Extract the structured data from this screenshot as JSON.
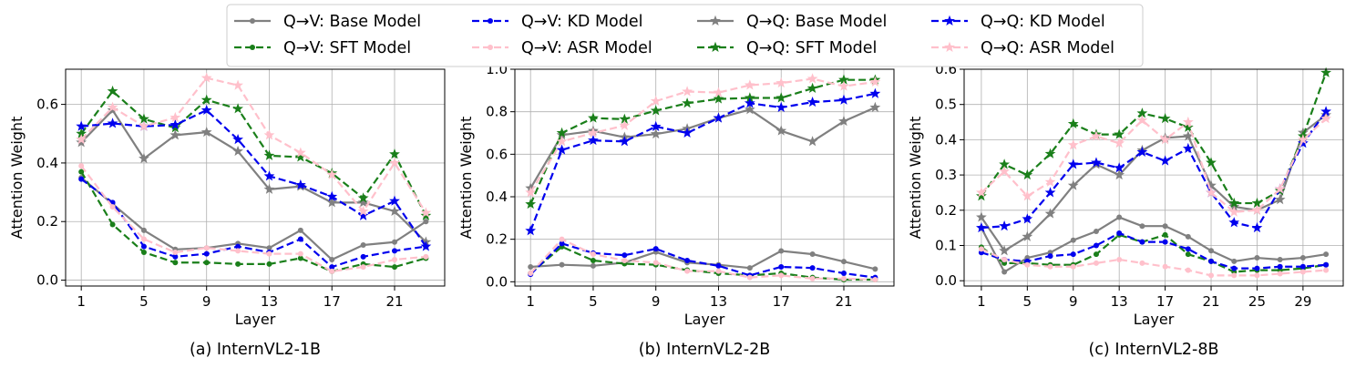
{
  "legend": {
    "entries": [
      {
        "label": "Q→V: Base Model",
        "color": "#808080",
        "dash": "solid",
        "marker": "dot"
      },
      {
        "label": "Q→V: KD Model",
        "color": "#0000ee",
        "dash": "dashed",
        "marker": "dot"
      },
      {
        "label": "Q→Q: Base Model",
        "color": "#808080",
        "dash": "solid",
        "marker": "star"
      },
      {
        "label": "Q→Q: KD Model",
        "color": "#0000ee",
        "dash": "dashed",
        "marker": "star"
      },
      {
        "label": "Q→V: SFT Model",
        "color": "#1a7f1a",
        "dash": "dashed",
        "marker": "dot"
      },
      {
        "label": "Q→V: ASR Model",
        "color": "#ffc0cb",
        "dash": "dashed",
        "marker": "dot"
      },
      {
        "label": "Q→Q: SFT Model",
        "color": "#1a7f1a",
        "dash": "dashed",
        "marker": "star"
      },
      {
        "label": "Q→Q: ASR Model",
        "color": "#ffc0cb",
        "dash": "dashed",
        "marker": "star"
      }
    ]
  },
  "chart_data": [
    {
      "type": "line",
      "caption": "(a) InternVL2-1B",
      "xlabel": "Layer",
      "ylabel": "Attention Weight",
      "xlim": [
        0,
        24.2
      ],
      "ylim": [
        -0.02,
        0.72
      ],
      "xticks": [
        1,
        5,
        9,
        13,
        17,
        21
      ],
      "yticks": [
        0.0,
        0.2,
        0.4,
        0.6
      ],
      "ytick_labels": [
        "0.0",
        "0.2",
        "0.4",
        "0.6"
      ],
      "grid": true,
      "x": [
        1,
        3,
        5,
        7,
        9,
        11,
        13,
        15,
        17,
        19,
        21,
        23
      ],
      "series": [
        {
          "name": "Q→V: Base Model",
          "values": [
            0.35,
            0.26,
            0.17,
            0.105,
            0.11,
            0.125,
            0.11,
            0.17,
            0.07,
            0.12,
            0.13,
            0.2
          ]
        },
        {
          "name": "Q→V: SFT Model",
          "values": [
            0.37,
            0.19,
            0.095,
            0.06,
            0.06,
            0.055,
            0.055,
            0.075,
            0.03,
            0.055,
            0.045,
            0.075
          ]
        },
        {
          "name": "Q→V: KD Model",
          "values": [
            0.345,
            0.265,
            0.115,
            0.08,
            0.09,
            0.115,
            0.095,
            0.14,
            0.045,
            0.08,
            0.1,
            0.115
          ]
        },
        {
          "name": "Q→V: ASR Model",
          "values": [
            0.39,
            0.25,
            0.14,
            0.095,
            0.11,
            0.1,
            0.09,
            0.09,
            0.03,
            0.045,
            0.07,
            0.08
          ]
        },
        {
          "name": "Q→Q: Base Model",
          "values": [
            0.47,
            0.58,
            0.415,
            0.495,
            0.505,
            0.44,
            0.31,
            0.32,
            0.265,
            0.265,
            0.235,
            0.13
          ]
        },
        {
          "name": "Q→Q: SFT Model",
          "values": [
            0.5,
            0.645,
            0.55,
            0.52,
            0.615,
            0.585,
            0.425,
            0.42,
            0.365,
            0.28,
            0.43,
            0.22
          ]
        },
        {
          "name": "Q→Q: KD Model",
          "values": [
            0.525,
            0.535,
            0.525,
            0.53,
            0.58,
            0.48,
            0.355,
            0.325,
            0.285,
            0.22,
            0.27,
            0.115
          ]
        },
        {
          "name": "Q→Q: ASR Model",
          "values": [
            0.48,
            0.59,
            0.525,
            0.555,
            0.69,
            0.665,
            0.495,
            0.435,
            0.36,
            0.235,
            0.4,
            0.23
          ]
        }
      ]
    },
    {
      "type": "line",
      "caption": "(b) InternVL2-2B",
      "xlabel": "Layer",
      "ylabel": "Attention Weight",
      "xlim": [
        0,
        24.2
      ],
      "ylim": [
        -0.02,
        1.0
      ],
      "xticks": [
        1,
        5,
        9,
        13,
        17,
        21
      ],
      "yticks": [
        0.0,
        0.2,
        0.4,
        0.6,
        0.8,
        1.0
      ],
      "ytick_labels": [
        "0.0",
        "0.2",
        "0.4",
        "0.6",
        "0.8",
        "1.0"
      ],
      "grid": true,
      "x": [
        1,
        3,
        5,
        7,
        9,
        11,
        13,
        15,
        17,
        19,
        21,
        23
      ],
      "series": [
        {
          "name": "Q→V: Base Model",
          "values": [
            0.07,
            0.08,
            0.075,
            0.09,
            0.14,
            0.09,
            0.08,
            0.065,
            0.145,
            0.13,
            0.095,
            0.06
          ]
        },
        {
          "name": "Q→V: SFT Model",
          "values": [
            0.04,
            0.165,
            0.1,
            0.085,
            0.08,
            0.055,
            0.04,
            0.03,
            0.04,
            0.02,
            0.01,
            0.01
          ]
        },
        {
          "name": "Q→V: KD Model",
          "values": [
            0.035,
            0.18,
            0.135,
            0.125,
            0.155,
            0.1,
            0.075,
            0.03,
            0.07,
            0.065,
            0.04,
            0.02
          ]
        },
        {
          "name": "Q→V: ASR Model",
          "values": [
            0.04,
            0.2,
            0.13,
            0.1,
            0.09,
            0.05,
            0.05,
            0.02,
            0.03,
            0.015,
            0.015,
            0.01
          ]
        },
        {
          "name": "Q→Q: Base Model",
          "values": [
            0.44,
            0.69,
            0.71,
            0.68,
            0.695,
            0.72,
            0.77,
            0.81,
            0.71,
            0.66,
            0.755,
            0.82
          ]
        },
        {
          "name": "Q→Q: SFT Model",
          "values": [
            0.365,
            0.7,
            0.77,
            0.765,
            0.805,
            0.84,
            0.86,
            0.865,
            0.865,
            0.91,
            0.95,
            0.95
          ]
        },
        {
          "name": "Q→Q: KD Model",
          "values": [
            0.24,
            0.62,
            0.665,
            0.66,
            0.73,
            0.7,
            0.77,
            0.84,
            0.82,
            0.845,
            0.855,
            0.885
          ]
        },
        {
          "name": "Q→Q: ASR Model",
          "values": [
            0.42,
            0.66,
            0.7,
            0.735,
            0.85,
            0.895,
            0.89,
            0.925,
            0.935,
            0.955,
            0.92,
            0.94
          ]
        }
      ]
    },
    {
      "type": "line",
      "caption": "(c) InternVL2-8B",
      "xlabel": "Layer",
      "ylabel": "Attention Weight",
      "xlim": [
        -0.5,
        32.5
      ],
      "ylim": [
        -0.015,
        0.6
      ],
      "xticks": [
        1,
        5,
        9,
        13,
        17,
        21,
        25,
        29
      ],
      "yticks": [
        0.0,
        0.1,
        0.2,
        0.3,
        0.4,
        0.5,
        0.6
      ],
      "ytick_labels": [
        "0.0",
        "0.1",
        "0.2",
        "0.3",
        "0.4",
        "0.5",
        "0.6"
      ],
      "grid": true,
      "x": [
        1,
        3,
        5,
        7,
        9,
        11,
        13,
        15,
        17,
        19,
        21,
        23,
        25,
        27,
        29,
        31
      ],
      "series": [
        {
          "name": "Q→V: Base Model",
          "values": [
            0.15,
            0.025,
            0.065,
            0.08,
            0.115,
            0.14,
            0.18,
            0.155,
            0.155,
            0.125,
            0.085,
            0.055,
            0.065,
            0.06,
            0.065,
            0.075
          ]
        },
        {
          "name": "Q→V: SFT Model",
          "values": [
            0.095,
            0.05,
            0.05,
            0.045,
            0.045,
            0.075,
            0.13,
            0.11,
            0.13,
            0.075,
            0.055,
            0.025,
            0.03,
            0.03,
            0.035,
            0.045
          ]
        },
        {
          "name": "Q→V: KD Model",
          "values": [
            0.08,
            0.06,
            0.055,
            0.07,
            0.075,
            0.1,
            0.135,
            0.11,
            0.11,
            0.09,
            0.055,
            0.035,
            0.035,
            0.04,
            0.04,
            0.045
          ]
        },
        {
          "name": "Q→V: ASR Model",
          "values": [
            0.09,
            0.06,
            0.045,
            0.04,
            0.04,
            0.05,
            0.06,
            0.05,
            0.04,
            0.03,
            0.015,
            0.015,
            0.015,
            0.02,
            0.025,
            0.03
          ]
        },
        {
          "name": "Q→Q: Base Model",
          "values": [
            0.18,
            0.085,
            0.125,
            0.19,
            0.27,
            0.33,
            0.3,
            0.37,
            0.405,
            0.41,
            0.27,
            0.21,
            0.2,
            0.23,
            0.42,
            0.47
          ]
        },
        {
          "name": "Q→Q: SFT Model",
          "values": [
            0.24,
            0.33,
            0.3,
            0.36,
            0.445,
            0.415,
            0.415,
            0.475,
            0.46,
            0.435,
            0.335,
            0.22,
            0.22,
            0.255,
            0.41,
            0.59
          ]
        },
        {
          "name": "Q→Q: KD Model",
          "values": [
            0.15,
            0.155,
            0.175,
            0.25,
            0.33,
            0.335,
            0.32,
            0.365,
            0.34,
            0.375,
            0.25,
            0.165,
            0.15,
            0.26,
            0.39,
            0.48
          ]
        },
        {
          "name": "Q→Q: ASR Model",
          "values": [
            0.25,
            0.31,
            0.24,
            0.28,
            0.385,
            0.41,
            0.39,
            0.455,
            0.4,
            0.45,
            0.25,
            0.195,
            0.2,
            0.26,
            0.4,
            0.46
          ]
        }
      ]
    }
  ]
}
